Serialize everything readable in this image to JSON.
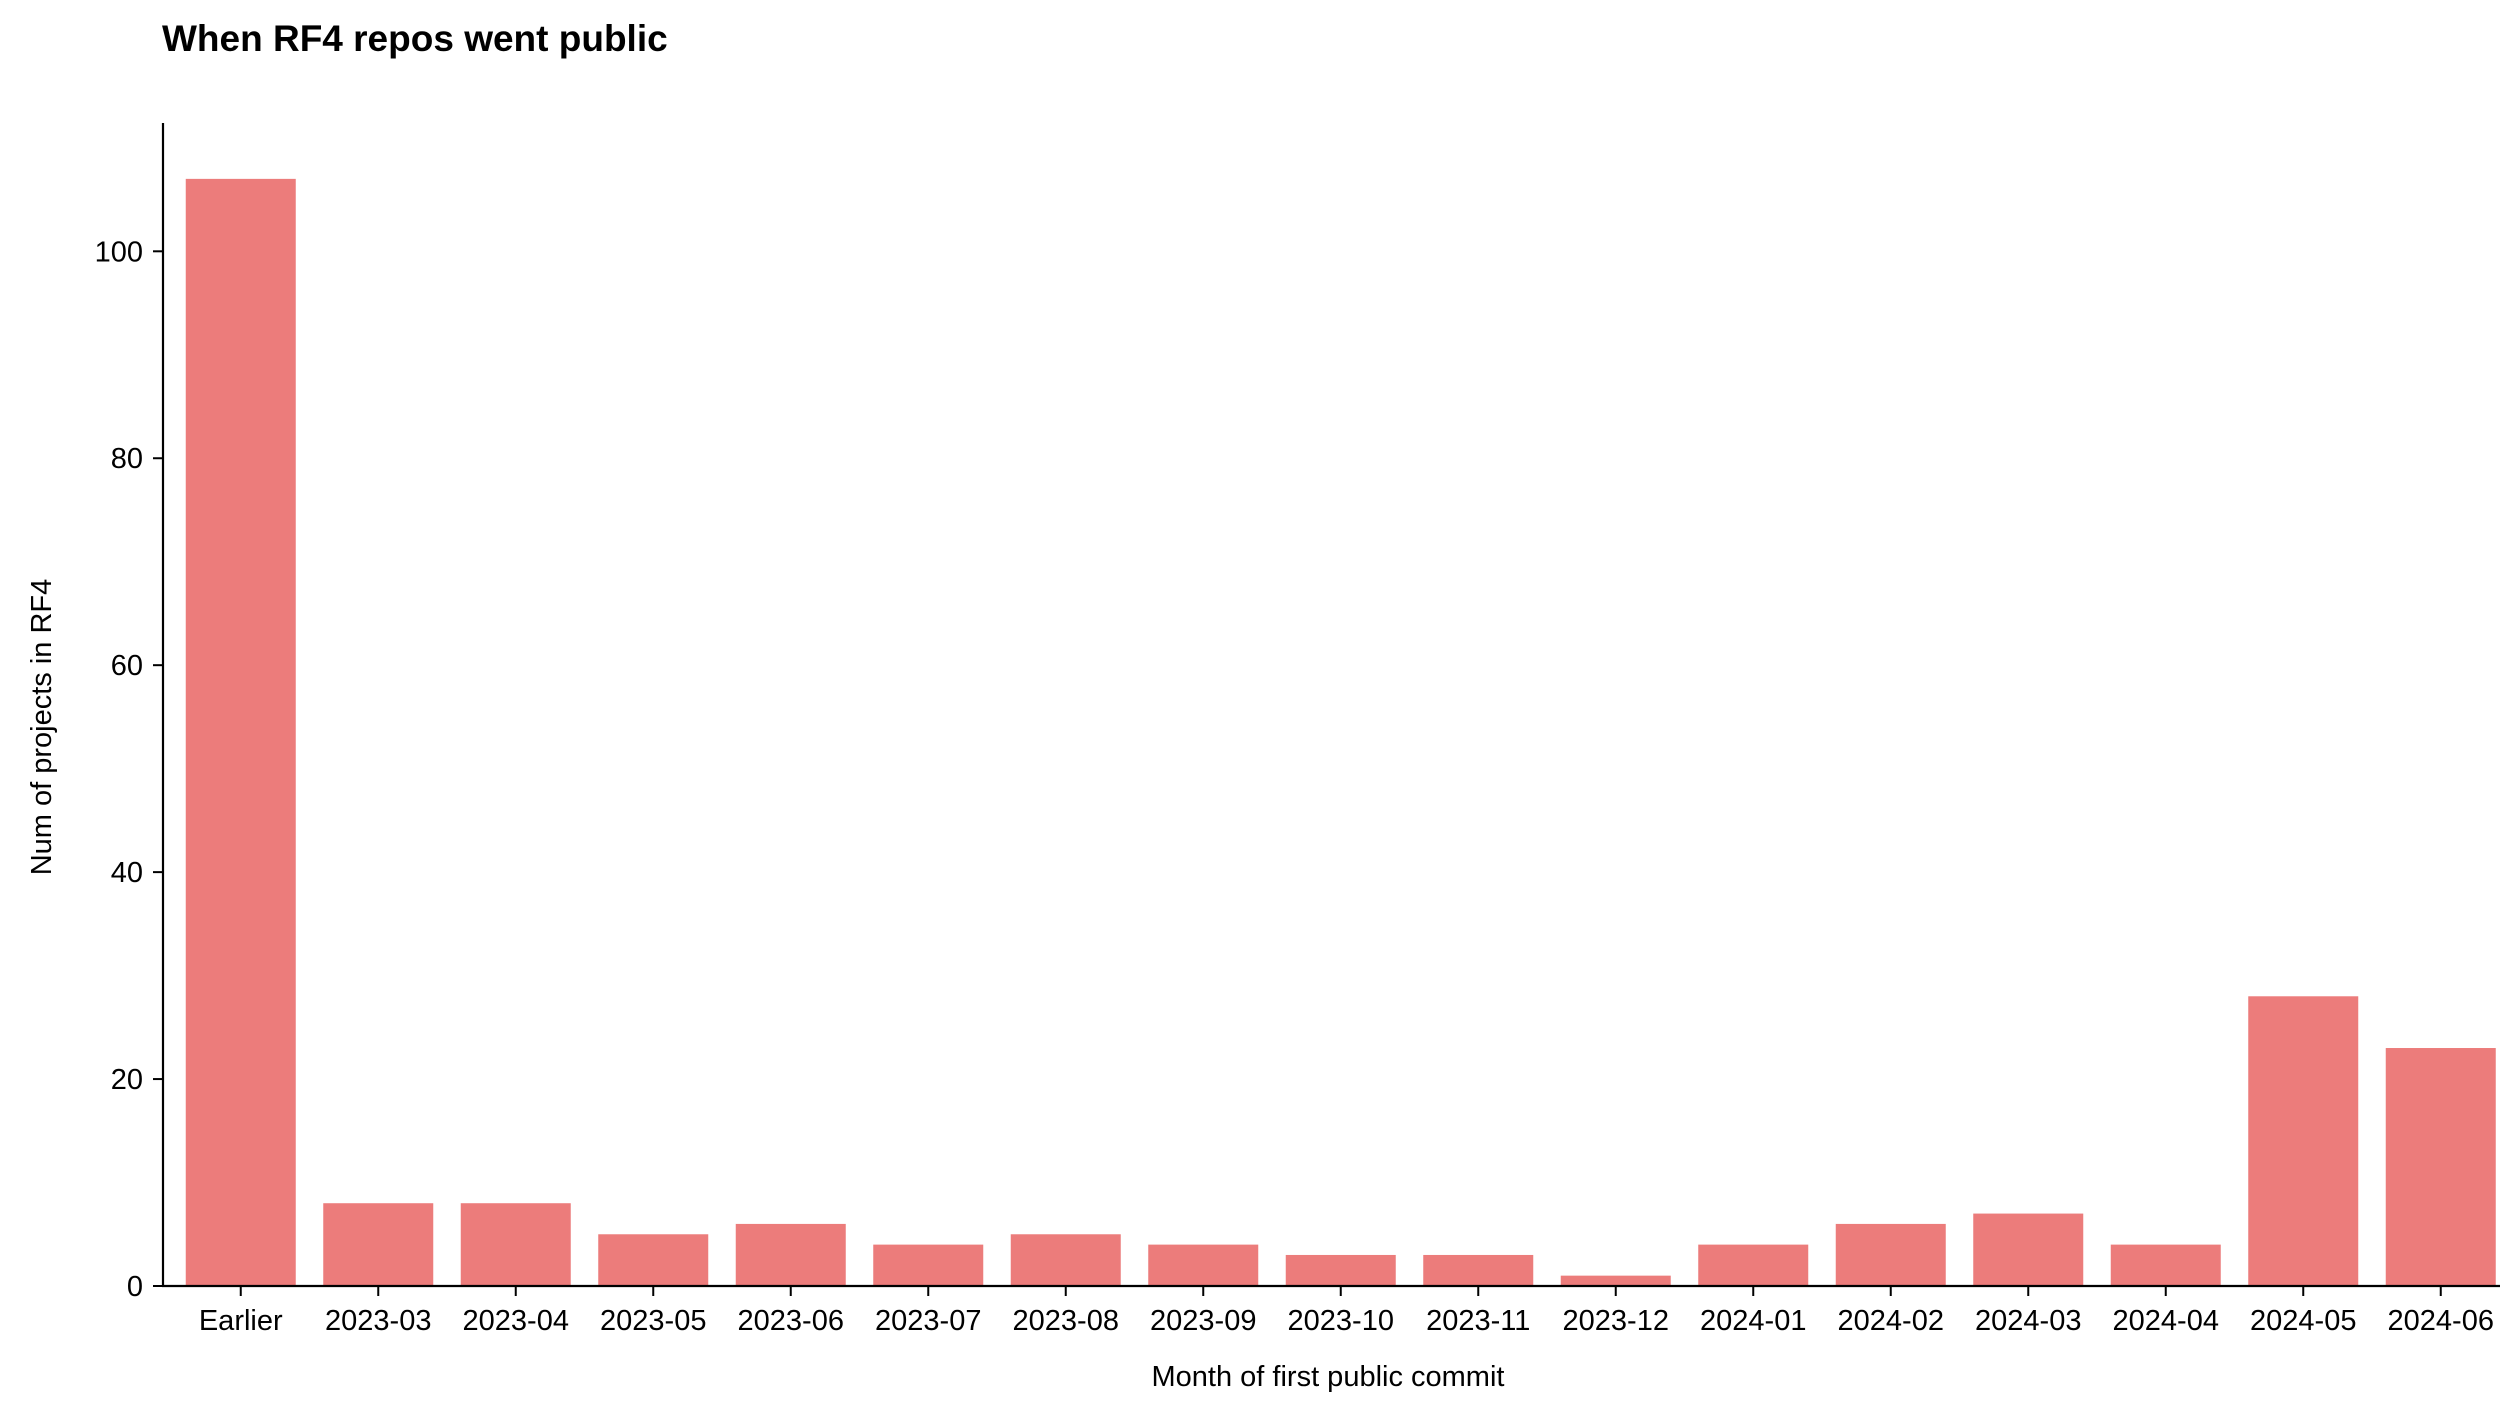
{
  "chart_data": {
    "type": "bar",
    "title": "When RF4 repos went public",
    "xlabel": "Month of first public commit",
    "ylabel": "Num of projects in RF4",
    "categories": [
      "Earlier",
      "2023-03",
      "2023-04",
      "2023-05",
      "2023-06",
      "2023-07",
      "2023-08",
      "2023-09",
      "2023-10",
      "2023-11",
      "2023-12",
      "2024-01",
      "2024-02",
      "2024-03",
      "2024-04",
      "2024-05",
      "2024-06"
    ],
    "values": [
      107,
      8,
      8,
      5,
      6,
      4,
      5,
      4,
      3,
      3,
      1,
      4,
      6,
      7,
      4,
      28,
      23
    ],
    "ylim": [
      0,
      112.4
    ],
    "yticks": [
      0,
      20,
      40,
      60,
      80,
      100
    ],
    "bar_color": "#ec7c7b",
    "grid": false,
    "legend": "none"
  }
}
